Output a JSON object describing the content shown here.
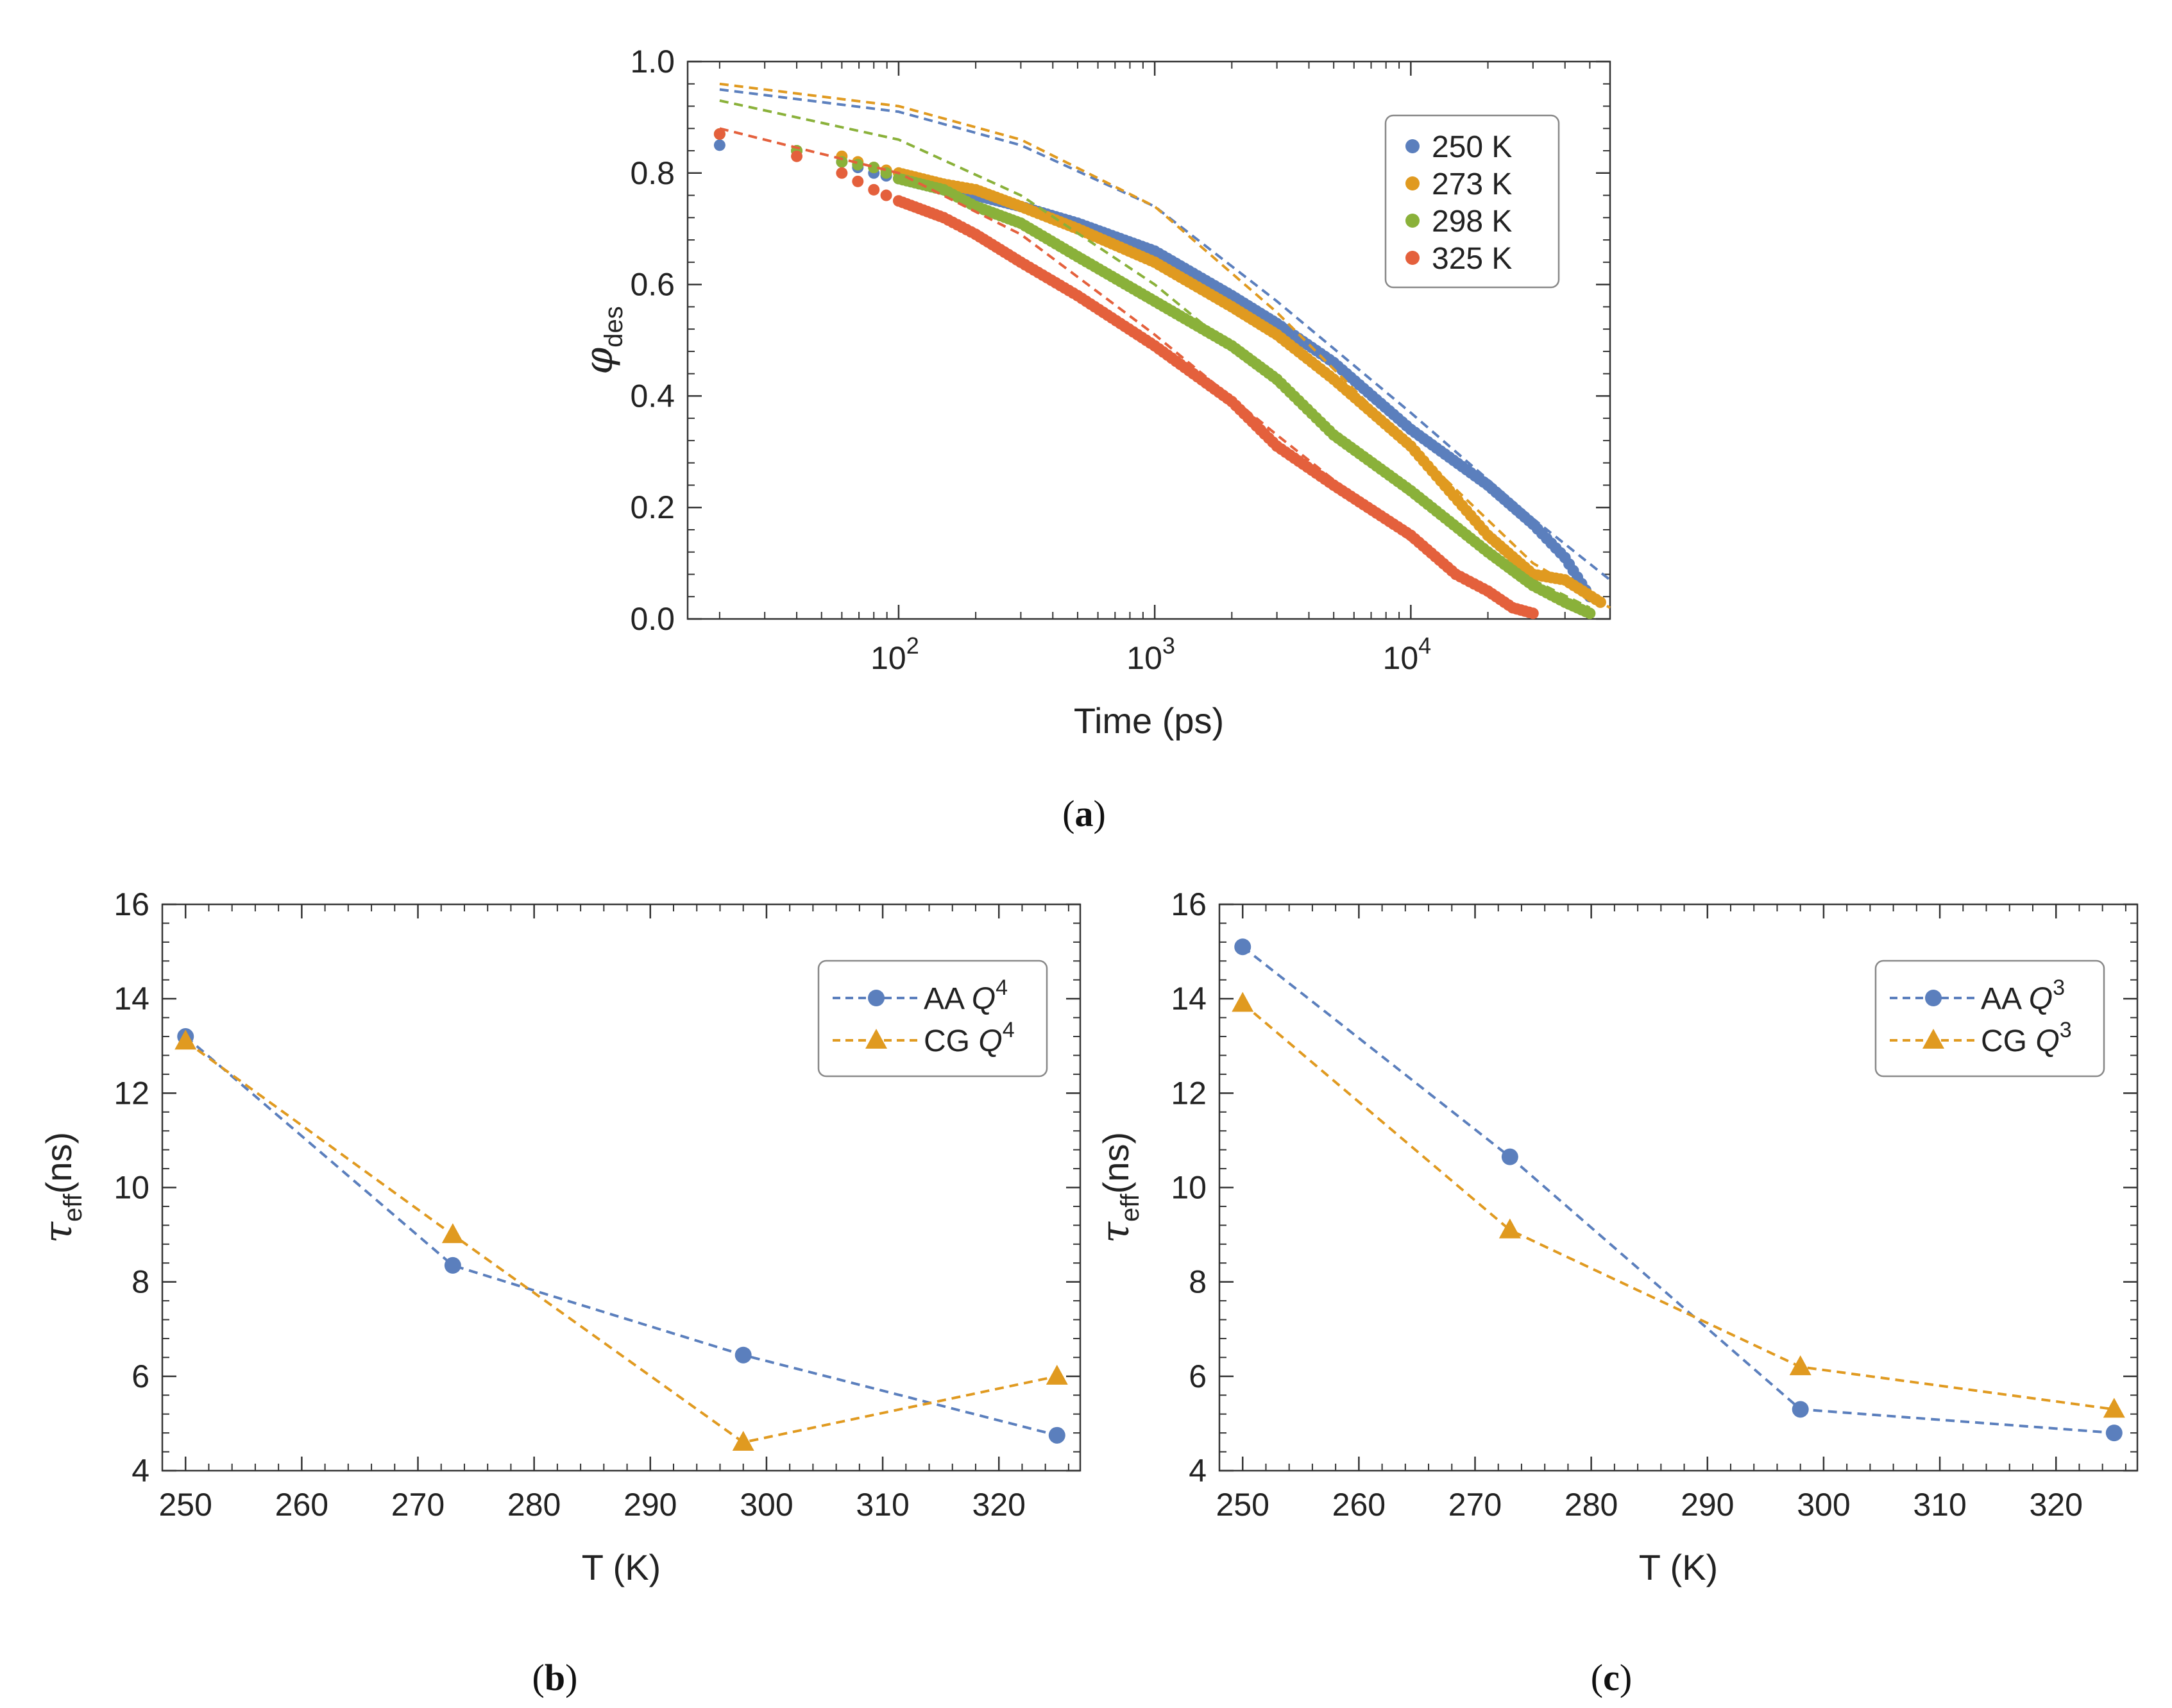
{
  "chart_data": [
    {
      "panel": "a",
      "panel_label_open": "(",
      "panel_label_letter": "a",
      "panel_label_close": ")",
      "type": "scatter",
      "xlabel": "Time (ps)",
      "ylabel_base": "φ",
      "ylabel_sub": "des",
      "xscale": "log",
      "xlim": [
        15,
        60000
      ],
      "ylim": [
        0.0,
        1.0
      ],
      "yticks": [
        "0.0",
        "0.2",
        "0.4",
        "0.6",
        "0.8",
        "1.0"
      ],
      "xticks": [
        {
          "base": "10",
          "exp": "2",
          "value": 100
        },
        {
          "base": "10",
          "exp": "3",
          "value": 1000
        },
        {
          "base": "10",
          "exp": "4",
          "value": 10000
        }
      ],
      "legend_position": "top-right",
      "series": [
        {
          "name": "250 K",
          "color": "#5b7fbd",
          "points": [
            [
              20,
              0.85
            ],
            [
              40,
              0.84
            ],
            [
              60,
              0.82
            ],
            [
              80,
              0.8
            ],
            [
              100,
              0.79
            ],
            [
              150,
              0.77
            ],
            [
              200,
              0.76
            ],
            [
              300,
              0.74
            ],
            [
              500,
              0.71
            ],
            [
              1000,
              0.66
            ],
            [
              2000,
              0.58
            ],
            [
              3000,
              0.53
            ],
            [
              5000,
              0.46
            ],
            [
              10000,
              0.34
            ],
            [
              20000,
              0.24
            ],
            [
              30000,
              0.17
            ],
            [
              40000,
              0.11
            ],
            [
              50000,
              0.04
            ]
          ],
          "fit": [
            [
              20,
              0.95
            ],
            [
              100,
              0.91
            ],
            [
              300,
              0.85
            ],
            [
              1000,
              0.74
            ],
            [
              3000,
              0.57
            ],
            [
              10000,
              0.37
            ],
            [
              30000,
              0.18
            ],
            [
              60000,
              0.07
            ]
          ]
        },
        {
          "name": "273 K",
          "color": "#e09a20",
          "points": [
            [
              20,
              0.87
            ],
            [
              40,
              0.84
            ],
            [
              60,
              0.83
            ],
            [
              80,
              0.81
            ],
            [
              100,
              0.8
            ],
            [
              150,
              0.78
            ],
            [
              200,
              0.77
            ],
            [
              300,
              0.74
            ],
            [
              500,
              0.7
            ],
            [
              1000,
              0.64
            ],
            [
              2000,
              0.56
            ],
            [
              3000,
              0.51
            ],
            [
              5000,
              0.43
            ],
            [
              10000,
              0.31
            ],
            [
              20000,
              0.15
            ],
            [
              30000,
              0.08
            ],
            [
              40000,
              0.07
            ],
            [
              55000,
              0.03
            ]
          ],
          "fit": [
            [
              20,
              0.96
            ],
            [
              100,
              0.92
            ],
            [
              300,
              0.86
            ],
            [
              1000,
              0.74
            ],
            [
              3000,
              0.55
            ],
            [
              10000,
              0.31
            ],
            [
              30000,
              0.1
            ],
            [
              60000,
              0.02
            ]
          ]
        },
        {
          "name": "298 K",
          "color": "#8ab13a",
          "points": [
            [
              20,
              0.87
            ],
            [
              40,
              0.84
            ],
            [
              60,
              0.82
            ],
            [
              80,
              0.81
            ],
            [
              100,
              0.79
            ],
            [
              150,
              0.77
            ],
            [
              200,
              0.74
            ],
            [
              300,
              0.71
            ],
            [
              500,
              0.65
            ],
            [
              1000,
              0.57
            ],
            [
              2000,
              0.49
            ],
            [
              3000,
              0.43
            ],
            [
              5000,
              0.33
            ],
            [
              10000,
              0.23
            ],
            [
              20000,
              0.12
            ],
            [
              30000,
              0.06
            ],
            [
              40000,
              0.03
            ],
            [
              50000,
              0.01
            ]
          ],
          "fit": [
            [
              20,
              0.93
            ],
            [
              100,
              0.86
            ],
            [
              300,
              0.76
            ],
            [
              1000,
              0.6
            ],
            [
              3000,
              0.42
            ],
            [
              10000,
              0.22
            ],
            [
              30000,
              0.07
            ],
            [
              50000,
              0.02
            ]
          ]
        },
        {
          "name": "325 K",
          "color": "#e4603c",
          "points": [
            [
              20,
              0.87
            ],
            [
              40,
              0.83
            ],
            [
              60,
              0.8
            ],
            [
              80,
              0.77
            ],
            [
              100,
              0.75
            ],
            [
              150,
              0.72
            ],
            [
              200,
              0.69
            ],
            [
              300,
              0.64
            ],
            [
              500,
              0.58
            ],
            [
              1000,
              0.49
            ],
            [
              2000,
              0.39
            ],
            [
              3000,
              0.31
            ],
            [
              5000,
              0.24
            ],
            [
              10000,
              0.15
            ],
            [
              15000,
              0.08
            ],
            [
              20000,
              0.05
            ],
            [
              25000,
              0.02
            ],
            [
              30000,
              0.01
            ]
          ],
          "fit": [
            [
              20,
              0.88
            ],
            [
              100,
              0.8
            ],
            [
              300,
              0.69
            ],
            [
              1000,
              0.51
            ],
            [
              3000,
              0.33
            ],
            [
              10000,
              0.14
            ],
            [
              20000,
              0.05
            ],
            [
              30000,
              0.01
            ]
          ]
        }
      ]
    },
    {
      "panel": "b",
      "panel_label_open": "(",
      "panel_label_letter": "b",
      "panel_label_close": ")",
      "type": "line",
      "xlabel": "T (K)",
      "ylabel_base": "τ",
      "ylabel_sub": "eff",
      "ylabel_unit": "(ns)",
      "xlim": [
        248,
        327
      ],
      "ylim": [
        4,
        16
      ],
      "xticks": [
        "250",
        "260",
        "270",
        "280",
        "290",
        "300",
        "310",
        "320"
      ],
      "yticks": [
        "4",
        "6",
        "8",
        "10",
        "12",
        "14",
        "16"
      ],
      "legend_position": "top-right",
      "x": [
        250,
        273,
        298,
        325
      ],
      "series": [
        {
          "name": "AA",
          "sym": "Q",
          "sup": "4",
          "marker": "circle",
          "color": "#5b7fbd",
          "values": [
            13.2,
            8.35,
            6.45,
            4.75
          ]
        },
        {
          "name": "CG",
          "sym": "Q",
          "sup": "4",
          "marker": "triangle",
          "color": "#e09a20",
          "values": [
            13.1,
            9.0,
            4.6,
            6.0
          ]
        }
      ]
    },
    {
      "panel": "c",
      "panel_label_open": "(",
      "panel_label_letter": "c",
      "panel_label_close": ")",
      "type": "line",
      "xlabel": "T (K)",
      "ylabel_base": "τ",
      "ylabel_sub": "eff",
      "ylabel_unit": "(ns)",
      "xlim": [
        248,
        327
      ],
      "ylim": [
        4,
        16
      ],
      "xticks": [
        "250",
        "260",
        "270",
        "280",
        "290",
        "300",
        "310",
        "320"
      ],
      "yticks": [
        "4",
        "6",
        "8",
        "10",
        "12",
        "14",
        "16"
      ],
      "legend_position": "top-right",
      "x": [
        250,
        273,
        298,
        325
      ],
      "series": [
        {
          "name": "AA",
          "sym": "Q",
          "sup": "3",
          "marker": "circle",
          "color": "#5b7fbd",
          "values": [
            15.1,
            10.65,
            5.3,
            4.8
          ]
        },
        {
          "name": "CG",
          "sym": "Q",
          "sup": "3",
          "marker": "triangle",
          "color": "#e09a20",
          "values": [
            13.9,
            9.1,
            6.2,
            5.3
          ]
        }
      ]
    }
  ]
}
